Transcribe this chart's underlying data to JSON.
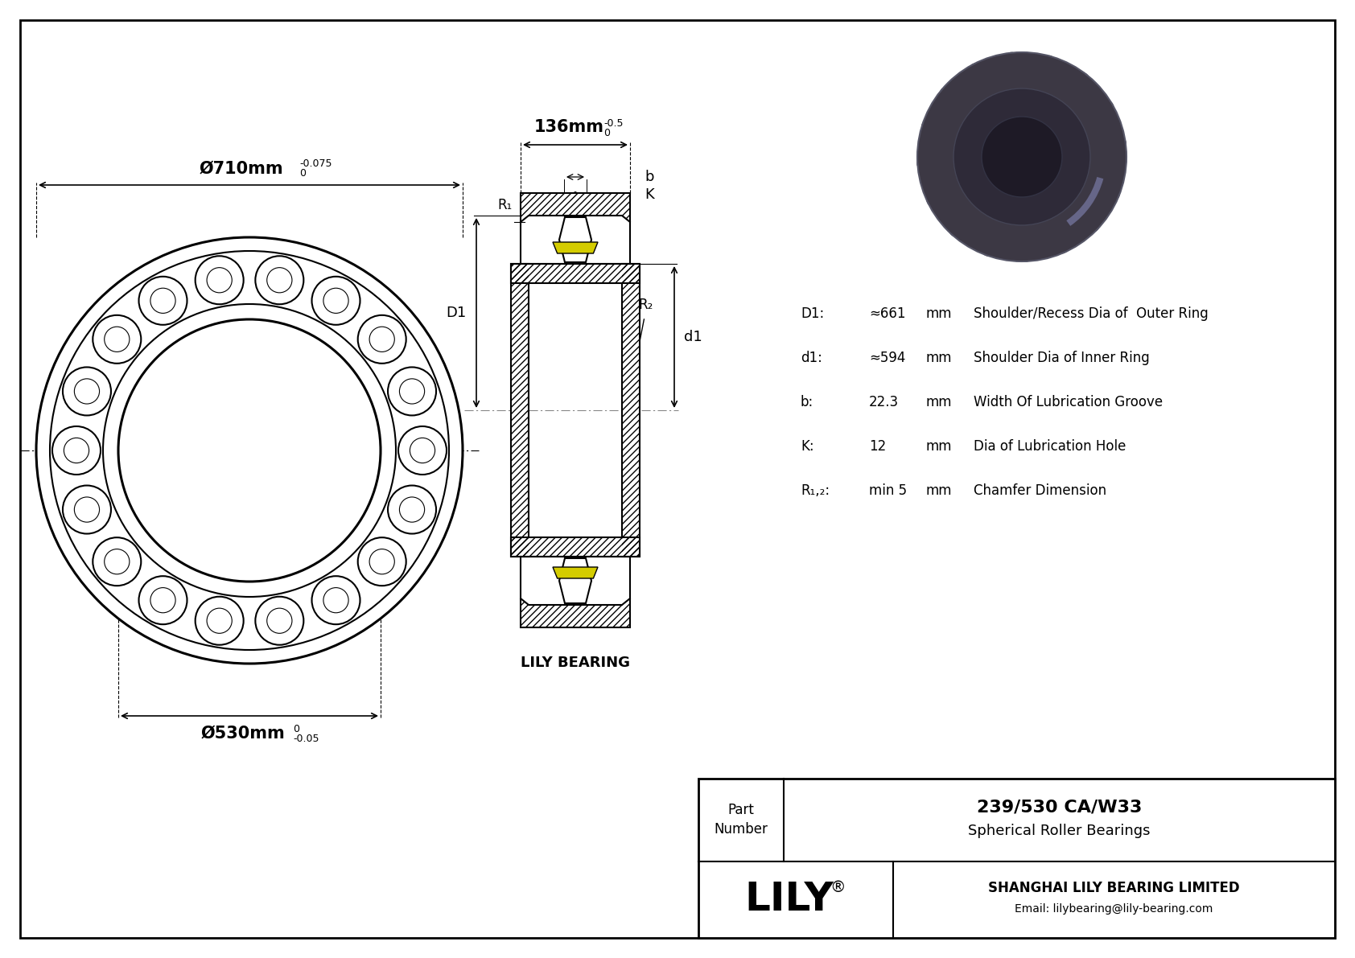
{
  "bg_color": "#ffffff",
  "lc": "#000000",
  "yellow_color": "#d4cc00",
  "outer_dia_main": "Ø710mm",
  "outer_tol_sup": "0",
  "outer_tol_sub": "-0.075",
  "inner_dia_main": "Ø530mm",
  "inner_tol_sup": "0",
  "inner_tol_sub": "-0.05",
  "width_main": "136mm",
  "width_tol_sup": "0",
  "width_tol_sub": "-0.5",
  "specs": [
    {
      "label": "D1:",
      "val": "≈661",
      "unit": "mm",
      "desc": "Shoulder/Recess Dia of  Outer Ring"
    },
    {
      "label": "d1:",
      "val": "≈594",
      "unit": "mm",
      "desc": "Shoulder Dia of Inner Ring"
    },
    {
      "label": "b:",
      "val": "22.3",
      "unit": "mm",
      "desc": "Width Of Lubrication Groove"
    },
    {
      "label": "K:",
      "val": "12",
      "unit": "mm",
      "desc": "Dia of Lubrication Hole"
    },
    {
      "label": "R₁,₂:",
      "val": "min 5",
      "unit": "mm",
      "desc": "Chamfer Dimension"
    }
  ],
  "logo": "LILY",
  "reg_mark": "®",
  "company": "SHANGHAI LILY BEARING LIMITED",
  "email": "Email: lilybearing@lily-bearing.com",
  "part_label1": "Part",
  "part_label2": "Number",
  "part_number": "239/530 CA/W33",
  "part_type": "Spherical Roller Bearings",
  "lily_bearing": "LILY BEARING",
  "gray3d_outer": "#3c3844",
  "gray3d_mid": "#2e2a38",
  "gray3d_inner": "#1e1a26"
}
